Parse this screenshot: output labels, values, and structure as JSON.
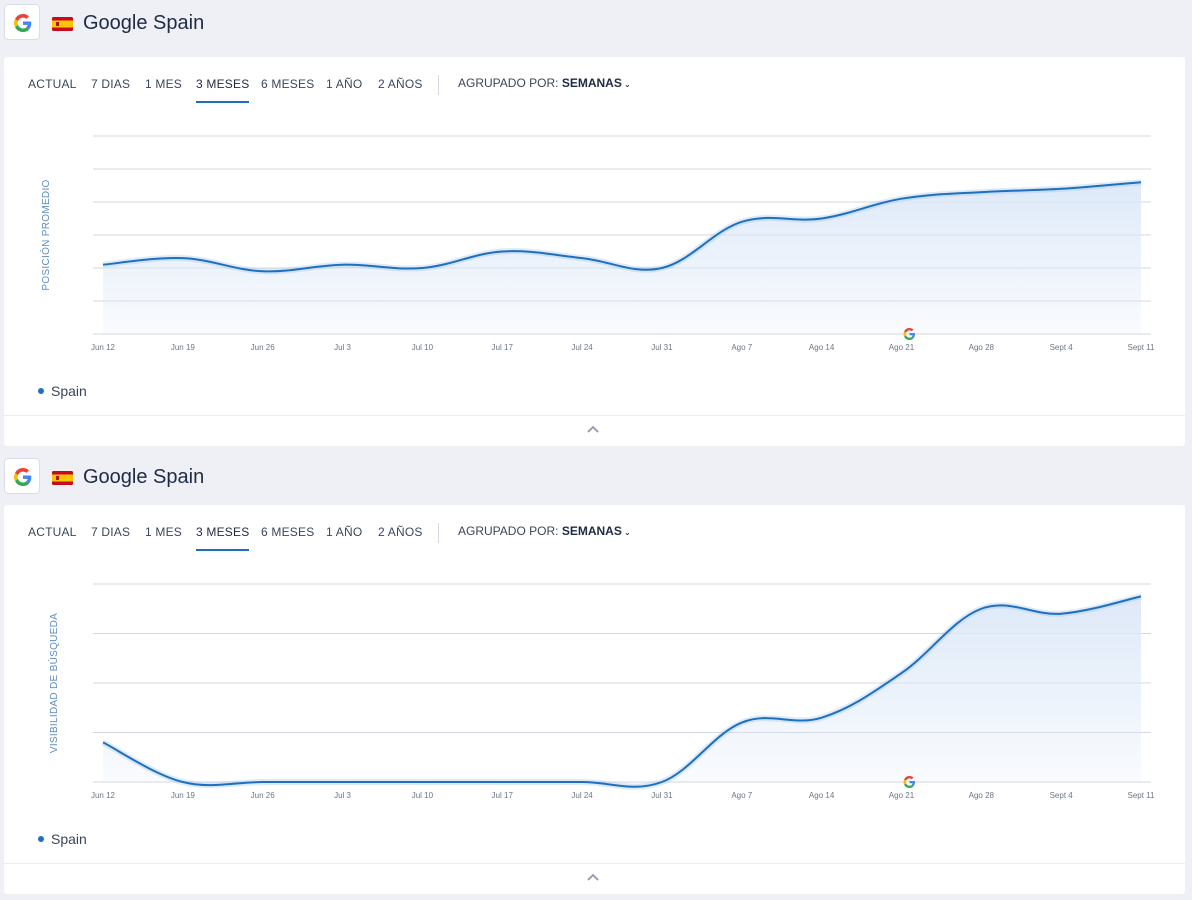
{
  "sections": [
    {
      "title": "Google Spain",
      "tabs": [
        "ACTUAL",
        "7 DIAS",
        "1 MES",
        "3 MESES",
        "6 MESES",
        "1 AÑO",
        "2 AÑOS"
      ],
      "active_tab": "3 MESES",
      "group_label": "AGRUPADO POR:",
      "group_value": "SEMANAS",
      "legend": "Spain"
    },
    {
      "title": "Google Spain",
      "tabs": [
        "ACTUAL",
        "7 DIAS",
        "1 MES",
        "3 MESES",
        "6 MESES",
        "1 AÑO",
        "2 AÑOS"
      ],
      "active_tab": "3 MESES",
      "group_label": "AGRUPADO POR:",
      "group_value": "SEMANAS",
      "legend": "Spain"
    }
  ],
  "colors": {
    "line": "#1f6fbf",
    "area": "#dce8f8",
    "grid": "#d3d7df",
    "brand_g_blue": "#4285F4",
    "brand_g_red": "#EA4335",
    "brand_g_yellow": "#FBBC05",
    "brand_g_green": "#34A853"
  },
  "icons": {
    "engine": "google-g-icon",
    "flag": "spain-flag-icon",
    "collapse": "chevron-up-icon"
  },
  "chart_data": [
    {
      "type": "area",
      "title": "",
      "ylabel": "POSICIÓN PROMEDIO",
      "xlabel": "",
      "categories": [
        "Jun 12",
        "Jun 19",
        "Jun 26",
        "Jul 3",
        "Jul 10",
        "Jul 17",
        "Jul 24",
        "Jul 31",
        "Ago 7",
        "Ago 14",
        "Ago 21",
        "Ago 28",
        "Sept 4",
        "Sept 11"
      ],
      "series": [
        {
          "name": "Spain",
          "values": [
            2.1,
            2.3,
            1.9,
            2.1,
            2.0,
            2.5,
            2.3,
            2.0,
            3.4,
            3.5,
            4.1,
            4.3,
            4.4,
            4.6
          ]
        }
      ],
      "ylim": [
        0,
        6
      ],
      "grid": true,
      "annotation_at": "Ago 21",
      "annotation_icon": "google-g-icon"
    },
    {
      "type": "area",
      "title": "",
      "ylabel": "VISIBILIDAD DE BÚSQUEDA",
      "xlabel": "",
      "categories": [
        "Jun 12",
        "Jun 19",
        "Jun 26",
        "Jul 3",
        "Jul 10",
        "Jul 17",
        "Jul 24",
        "Jul 31",
        "Ago 7",
        "Ago 14",
        "Ago 21",
        "Ago 28",
        "Sept 4",
        "Sept 11"
      ],
      "series": [
        {
          "name": "Spain",
          "values": [
            0.8,
            0.0,
            0.0,
            0.0,
            0.0,
            0.0,
            0.0,
            0.0,
            1.2,
            1.3,
            2.2,
            3.5,
            3.4,
            3.75
          ]
        }
      ],
      "ylim": [
        0,
        4
      ],
      "grid": true,
      "annotation_at": "Ago 21",
      "annotation_icon": "google-g-icon"
    }
  ]
}
